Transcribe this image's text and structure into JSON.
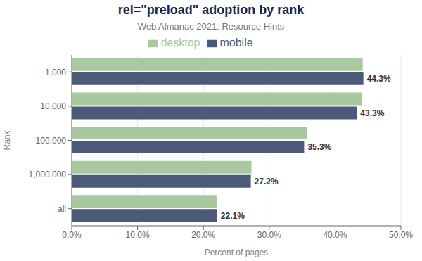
{
  "chart_data": {
    "type": "bar",
    "orientation": "horizontal",
    "title": "rel=\"preload\" adoption by rank",
    "subtitle": "Web Almanac 2021: Resource Hints",
    "xlabel": "Percent of pages",
    "ylabel": "Rank",
    "categories": [
      "1,000",
      "10,000",
      "100,000",
      "1,000,000",
      "all"
    ],
    "series": [
      {
        "name": "desktop",
        "color": "#a8c8a0",
        "values": [
          44.2,
          44.1,
          35.7,
          27.3,
          22.0
        ]
      },
      {
        "name": "mobile",
        "color": "#4a5a78",
        "values": [
          44.3,
          43.3,
          35.3,
          27.2,
          22.1
        ],
        "data_labels": true,
        "value_labels": [
          "44.3%",
          "43.3%",
          "35.3%",
          "27.2%",
          "22.1%"
        ]
      }
    ],
    "xlim": [
      0,
      50
    ],
    "xticks": [
      {
        "value": 0,
        "label": "0.0%"
      },
      {
        "value": 10,
        "label": "10.0%"
      },
      {
        "value": 20,
        "label": "20.0%"
      },
      {
        "value": 30,
        "label": "30.0%"
      },
      {
        "value": 40,
        "label": "40.0%"
      },
      {
        "value": 50,
        "label": "50.0%"
      }
    ],
    "grid": true,
    "legend": "top"
  }
}
